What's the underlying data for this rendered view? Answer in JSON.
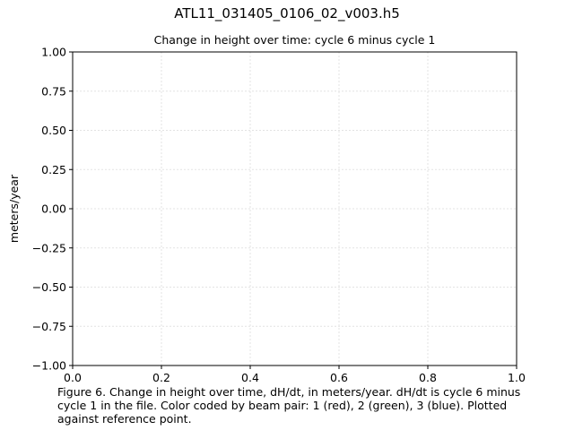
{
  "figure": {
    "suptitle": "ATL11_031405_0106_02_v003.h5",
    "caption": "Figure 6. Change in height over time, dH/dt, in meters/year. dH/dt is cycle 6 minus\ncycle 1 in the file. Color coded by beam pair: 1 (red), 2 (green), 3 (blue). Plotted\nagainst reference point."
  },
  "chart_data": {
    "type": "scatter",
    "title": "Change in height over time: cycle 6 minus cycle 1",
    "xlabel": "",
    "ylabel": "meters/year",
    "xlim": [
      0.0,
      1.0
    ],
    "ylim": [
      -1.0,
      1.0
    ],
    "xticks": [
      "0.0",
      "0.2",
      "0.4",
      "0.6",
      "0.8",
      "1.0"
    ],
    "yticks": [
      "1.00",
      "0.75",
      "0.50",
      "0.25",
      "0.00",
      "−0.25",
      "−0.50",
      "−0.75",
      "−1.00"
    ],
    "ytick_values": [
      1.0,
      0.75,
      0.5,
      0.25,
      0.0,
      -0.25,
      -0.5,
      -0.75,
      -1.0
    ],
    "xtick_values": [
      0.0,
      0.2,
      0.4,
      0.6,
      0.8,
      1.0
    ],
    "grid": true,
    "series": []
  }
}
